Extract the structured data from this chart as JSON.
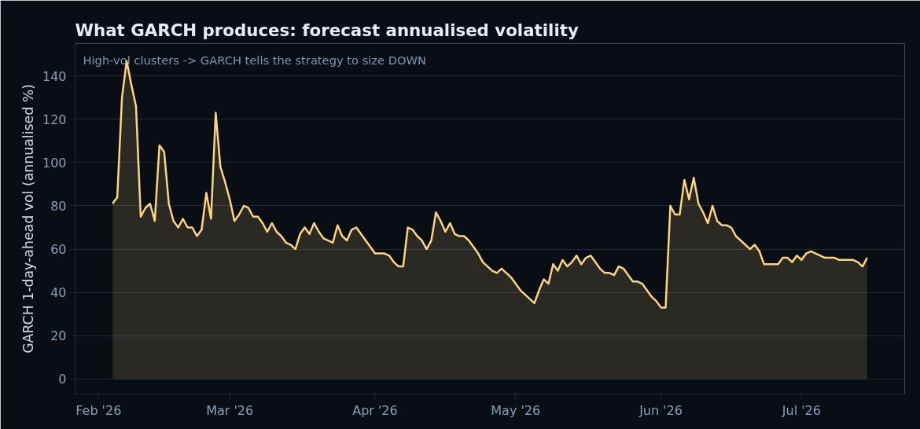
{
  "chart_data": {
    "type": "area",
    "title": "What GARCH produces: forecast annualised volatility",
    "ylabel": "GARCH 1-day-ahead vol (annualised %)",
    "annotations": [
      "High-vol clusters -> GARCH tells the strategy to size DOWN"
    ],
    "x": [
      "2026-02-04",
      "2026-02-05",
      "2026-02-06",
      "2026-02-07",
      "2026-02-08",
      "2026-02-09",
      "2026-02-10",
      "2026-02-11",
      "2026-02-12",
      "2026-02-13",
      "2026-02-14",
      "2026-02-15",
      "2026-02-16",
      "2026-02-17",
      "2026-02-18",
      "2026-02-19",
      "2026-02-20",
      "2026-02-21",
      "2026-02-22",
      "2026-02-23",
      "2026-02-24",
      "2026-02-25",
      "2026-02-26",
      "2026-02-27",
      "2026-02-28",
      "2026-03-01",
      "2026-03-02",
      "2026-03-03",
      "2026-03-04",
      "2026-03-05",
      "2026-03-06",
      "2026-03-07",
      "2026-03-08",
      "2026-03-09",
      "2026-03-10",
      "2026-03-11",
      "2026-03-12",
      "2026-03-13",
      "2026-03-14",
      "2026-03-15",
      "2026-03-16",
      "2026-03-17",
      "2026-03-18",
      "2026-03-19",
      "2026-03-20",
      "2026-03-21",
      "2026-03-22",
      "2026-03-23",
      "2026-03-24",
      "2026-03-25",
      "2026-03-26",
      "2026-03-27",
      "2026-03-28",
      "2026-03-29",
      "2026-03-30",
      "2026-03-31",
      "2026-04-01",
      "2026-04-02",
      "2026-04-03",
      "2026-04-04",
      "2026-04-05",
      "2026-04-06",
      "2026-04-07",
      "2026-04-08",
      "2026-04-09",
      "2026-04-10",
      "2026-04-11",
      "2026-04-12",
      "2026-04-13",
      "2026-04-14",
      "2026-04-15",
      "2026-04-16",
      "2026-04-17",
      "2026-04-18",
      "2026-04-19",
      "2026-04-20",
      "2026-04-21",
      "2026-04-22",
      "2026-04-23",
      "2026-04-24",
      "2026-04-25",
      "2026-04-26",
      "2026-04-27",
      "2026-04-28",
      "2026-04-29",
      "2026-04-30",
      "2026-05-01",
      "2026-05-02",
      "2026-05-03",
      "2026-05-04",
      "2026-05-05",
      "2026-05-06",
      "2026-05-07",
      "2026-05-08",
      "2026-05-09",
      "2026-05-10",
      "2026-05-11",
      "2026-05-12",
      "2026-05-13",
      "2026-05-14",
      "2026-05-15",
      "2026-05-16",
      "2026-05-17",
      "2026-05-18",
      "2026-05-19",
      "2026-05-20",
      "2026-05-21",
      "2026-05-22",
      "2026-05-23",
      "2026-05-24",
      "2026-05-25",
      "2026-05-26",
      "2026-05-27",
      "2026-05-28",
      "2026-05-29",
      "2026-05-30",
      "2026-05-31",
      "2026-06-01",
      "2026-06-02",
      "2026-06-03",
      "2026-06-04",
      "2026-06-05",
      "2026-06-06",
      "2026-06-07",
      "2026-06-08",
      "2026-06-09",
      "2026-06-10",
      "2026-06-11",
      "2026-06-12",
      "2026-06-13",
      "2026-06-14",
      "2026-06-15",
      "2026-06-16",
      "2026-06-17",
      "2026-06-18",
      "2026-06-19",
      "2026-06-20",
      "2026-06-21",
      "2026-06-22",
      "2026-06-23",
      "2026-06-24",
      "2026-06-25",
      "2026-06-26",
      "2026-06-27",
      "2026-06-28",
      "2026-06-29",
      "2026-06-30",
      "2026-07-01",
      "2026-07-02",
      "2026-07-03",
      "2026-07-04",
      "2026-07-05",
      "2026-07-06",
      "2026-07-07",
      "2026-07-08",
      "2026-07-09",
      "2026-07-10",
      "2026-07-11",
      "2026-07-12",
      "2026-07-13",
      "2026-07-14",
      "2026-07-15"
    ],
    "series": [
      {
        "color": "#fcd581",
        "values": [
          81,
          84,
          130,
          147,
          136,
          126,
          75,
          79,
          81,
          73,
          108,
          105,
          81,
          73,
          70,
          74,
          70,
          70,
          66,
          69,
          86,
          74,
          123,
          98,
          91,
          83,
          73,
          76,
          80,
          79,
          75,
          75,
          72,
          68,
          72,
          68,
          66,
          63,
          62,
          60,
          67,
          70,
          67,
          72,
          68,
          65,
          64,
          63,
          71,
          66,
          64,
          69,
          70,
          67,
          64,
          61,
          58,
          58,
          58,
          57,
          54,
          52,
          52,
          70,
          69,
          66,
          64,
          60,
          64,
          77,
          73,
          68,
          72,
          67,
          66,
          66,
          64,
          61,
          58,
          54,
          52,
          50,
          49,
          51,
          49,
          47,
          44,
          41,
          39,
          37,
          35,
          41,
          46,
          44,
          53,
          50,
          55,
          52,
          54,
          57,
          53,
          56,
          57,
          54,
          51,
          49,
          49,
          48,
          52,
          51,
          48,
          45,
          45,
          44,
          41,
          38,
          36,
          33,
          33,
          80,
          76,
          76,
          92,
          83,
          93,
          81,
          77,
          72,
          80,
          73,
          71,
          71,
          70,
          66,
          64,
          62,
          60,
          62,
          59,
          53,
          53,
          53,
          53,
          56,
          56,
          54,
          57,
          55,
          58,
          59,
          58,
          57,
          56,
          56,
          56,
          55,
          55,
          55,
          55,
          54,
          52,
          56
        ]
      }
    ],
    "xlim": [
      "2026-01-27",
      "2026-07-23"
    ],
    "xticks": [
      {
        "value": "2026-02-01",
        "label": "Feb '26"
      },
      {
        "value": "2026-03-01",
        "label": "Mar '26"
      },
      {
        "value": "2026-04-01",
        "label": "Apr '26"
      },
      {
        "value": "2026-05-01",
        "label": "May '26"
      },
      {
        "value": "2026-06-01",
        "label": "Jun '26"
      },
      {
        "value": "2026-07-01",
        "label": "Jul '26"
      }
    ],
    "ylim": [
      -7,
      155
    ],
    "yticks": [
      0,
      20,
      40,
      60,
      80,
      100,
      120,
      140
    ],
    "grid": "y"
  }
}
